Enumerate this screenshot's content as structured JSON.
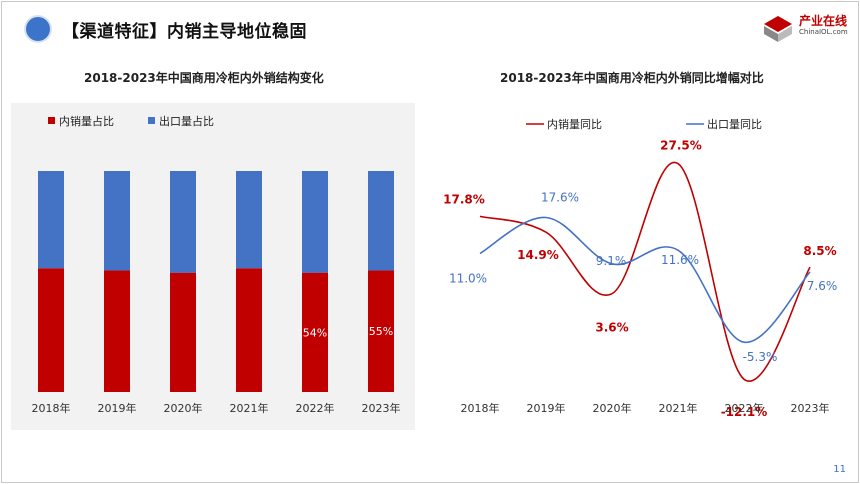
{
  "header": {
    "title": "【渠道特征】内销主导地位稳固",
    "logo_text": "产业在线",
    "logo_sub": "ChinaIOL.com"
  },
  "page_number": "11",
  "colors": {
    "domestic": "#c00000",
    "export": "#4472c4",
    "accent_dot": "#3b74c9"
  },
  "chart_data": [
    {
      "type": "bar",
      "stacked": true,
      "percent": true,
      "title": "2018-2023年中国商用冷柜内外销结构变化",
      "categories": [
        "2018年",
        "2019年",
        "2020年",
        "2021年",
        "2022年",
        "2023年"
      ],
      "series": [
        {
          "name": "内销量占比",
          "color": "#c00000",
          "values": [
            56,
            55,
            54,
            56,
            54,
            55
          ]
        },
        {
          "name": "出口量占比",
          "color": "#4472c4",
          "values": [
            44,
            45,
            46,
            44,
            46,
            45
          ]
        }
      ],
      "data_labels": [
        {
          "series": 0,
          "index": 4,
          "text": "54%"
        },
        {
          "series": 0,
          "index": 5,
          "text": "55%"
        }
      ],
      "ylim": [
        0,
        100
      ],
      "legend": "top-left",
      "grid": false
    },
    {
      "type": "line",
      "smooth": true,
      "title": "2018-2023年中国商用冷柜内外销同比增幅对比",
      "categories": [
        "2018年",
        "2019年",
        "2020年",
        "2021年",
        "2022年",
        "2023年"
      ],
      "series": [
        {
          "name": "内销量同比",
          "color": "#c00000",
          "values": [
            17.8,
            14.9,
            3.6,
            27.5,
            -12.1,
            8.5
          ],
          "labels": [
            "17.8%",
            "14.9%",
            "3.6%",
            "27.5%",
            "-12.1%",
            "8.5%"
          ]
        },
        {
          "name": "出口量同比",
          "color": "#4472c4",
          "values": [
            11.0,
            17.6,
            9.1,
            11.6,
            -5.3,
            7.6
          ],
          "labels": [
            "11.0%",
            "17.6%",
            "9.1%",
            "11.6%",
            "-5.3%",
            "7.6%"
          ]
        }
      ],
      "ylim": [
        -15,
        30
      ],
      "legend": "top",
      "grid": false
    }
  ]
}
